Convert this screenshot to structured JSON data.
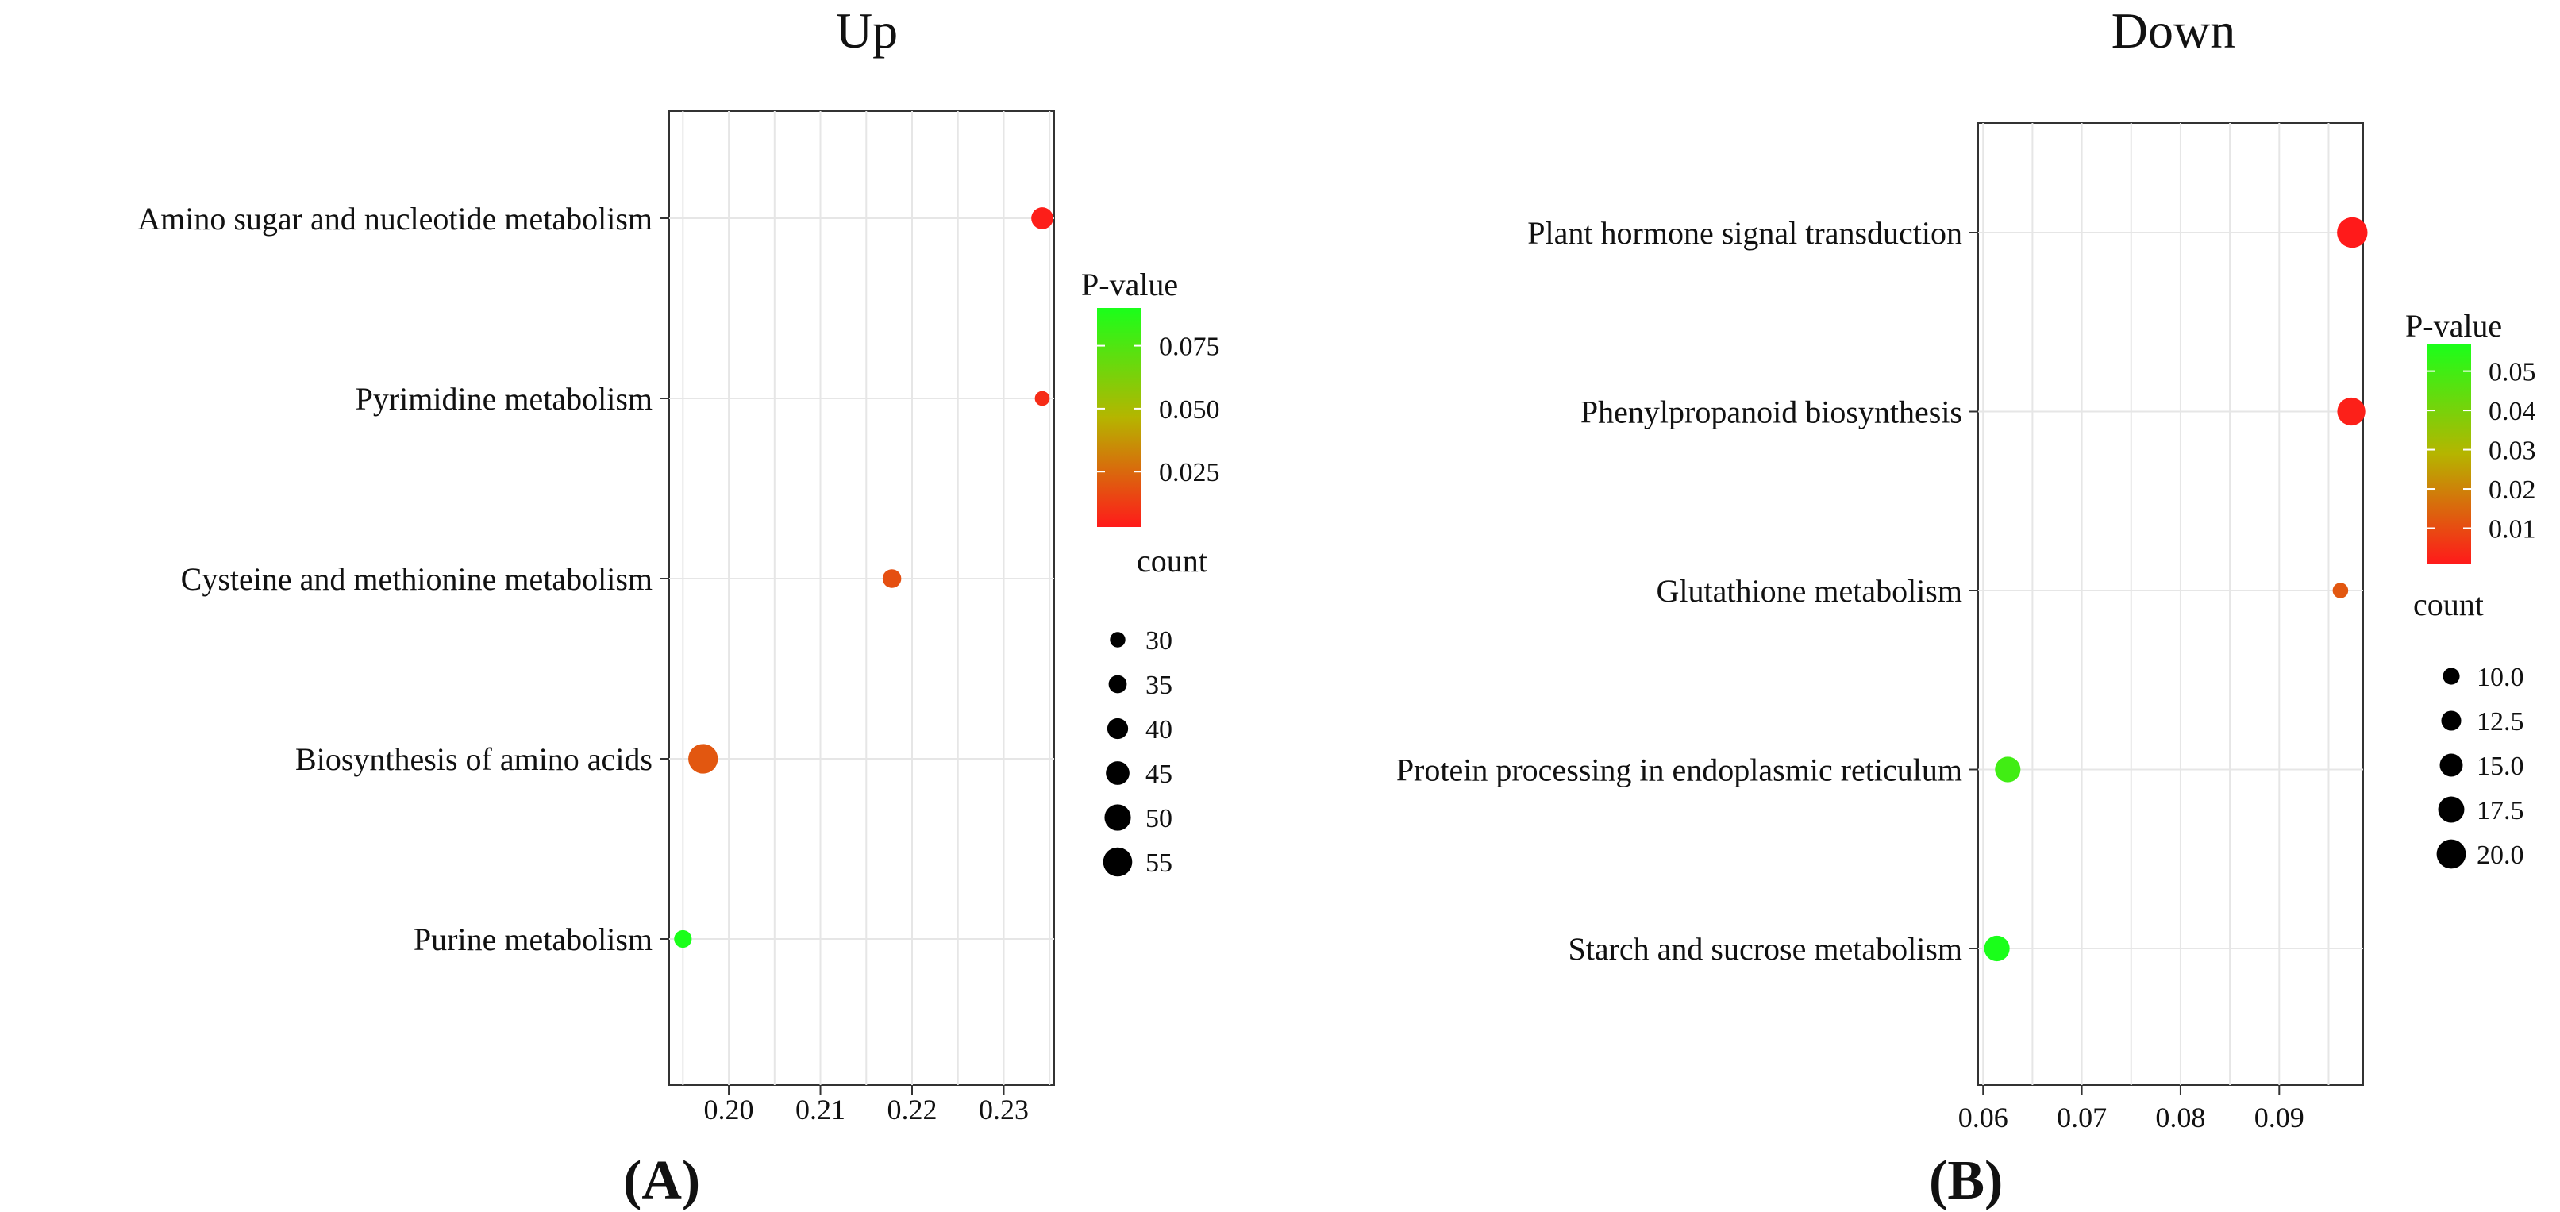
{
  "chart_data": [
    {
      "type": "scatter",
      "panel_label": "(A)",
      "panel_letter": "A",
      "title": "Up",
      "xlabel": "",
      "ylabel": "",
      "xlim": [
        0.1935,
        0.2355
      ],
      "xticks": [
        0.2,
        0.21,
        0.22,
        0.23
      ],
      "xtick_labels": [
        "0.20",
        "0.21",
        "0.22",
        "0.23"
      ],
      "grid": true,
      "categories": [
        "Amino sugar and nucleotide metabolism",
        "Pyrimidine metabolism",
        "Cysteine and methionine metabolism",
        "Biosynthesis of amino acids",
        "Purine metabolism"
      ],
      "points": [
        {
          "category": "Amino sugar and nucleotide metabolism",
          "x": 0.2342,
          "p_value": 0.004,
          "count": 42
        },
        {
          "category": "Pyrimidine metabolism",
          "x": 0.2342,
          "p_value": 0.008,
          "count": 29
        },
        {
          "category": "Cysteine and methionine metabolism",
          "x": 0.2178,
          "p_value": 0.018,
          "count": 36
        },
        {
          "category": "Biosynthesis of amino acids",
          "x": 0.1972,
          "p_value": 0.02,
          "count": 56
        },
        {
          "category": "Purine metabolism",
          "x": 0.195,
          "p_value": 0.09,
          "count": 34
        }
      ],
      "color_legend": {
        "title": "P-value",
        "min": 0.003,
        "max": 0.09,
        "ticks": [
          0.075,
          0.05,
          0.025
        ],
        "tick_labels": [
          "0.075",
          "0.050",
          "0.025"
        ],
        "low_color": "#ff1a1a",
        "high_color": "#1aff1a",
        "mid_color": "#b5b500"
      },
      "size_legend": {
        "title": "count",
        "values": [
          30,
          35,
          40,
          45,
          50,
          55
        ],
        "labels": [
          "30",
          "35",
          "40",
          "45",
          "50",
          "55"
        ],
        "min": 28,
        "max": 57
      }
    },
    {
      "type": "scatter",
      "panel_label": "(B)",
      "panel_letter": "B",
      "title": "Down",
      "xlabel": "",
      "ylabel": "",
      "xlim": [
        0.0595,
        0.0985
      ],
      "xticks": [
        0.06,
        0.07,
        0.08,
        0.09
      ],
      "xtick_labels": [
        "0.06",
        "0.07",
        "0.08",
        "0.09"
      ],
      "grid": true,
      "categories": [
        "Plant hormone signal transduction",
        "Phenylpropanoid biosynthesis",
        "Glutathione metabolism",
        "Protein processing in endoplasmic reticulum",
        "Starch and sucrose metabolism"
      ],
      "points": [
        {
          "category": "Plant hormone signal transduction",
          "x": 0.0974,
          "p_value": 0.001,
          "count": 21
        },
        {
          "category": "Phenylpropanoid biosynthesis",
          "x": 0.0973,
          "p_value": 0.002,
          "count": 19
        },
        {
          "category": "Glutathione metabolism",
          "x": 0.0962,
          "p_value": 0.012,
          "count": 9
        },
        {
          "category": "Protein processing in endoplasmic reticulum",
          "x": 0.0625,
          "p_value": 0.05,
          "count": 17
        },
        {
          "category": "Starch and sucrose metabolism",
          "x": 0.0614,
          "p_value": 0.057,
          "count": 17
        }
      ],
      "color_legend": {
        "title": "P-value",
        "min": 0.001,
        "max": 0.057,
        "ticks": [
          0.05,
          0.04,
          0.03,
          0.02,
          0.01
        ],
        "tick_labels": [
          "0.05",
          "0.04",
          "0.03",
          "0.02",
          "0.01"
        ],
        "low_color": "#ff1a1a",
        "high_color": "#1aff1a",
        "mid_color": "#b5b500"
      },
      "size_legend": {
        "title": "count",
        "values": [
          10.0,
          12.5,
          15.0,
          17.5,
          20.0
        ],
        "labels": [
          "10.0",
          "12.5",
          "15.0",
          "17.5",
          "20.0"
        ],
        "min": 8,
        "max": 22
      }
    }
  ]
}
